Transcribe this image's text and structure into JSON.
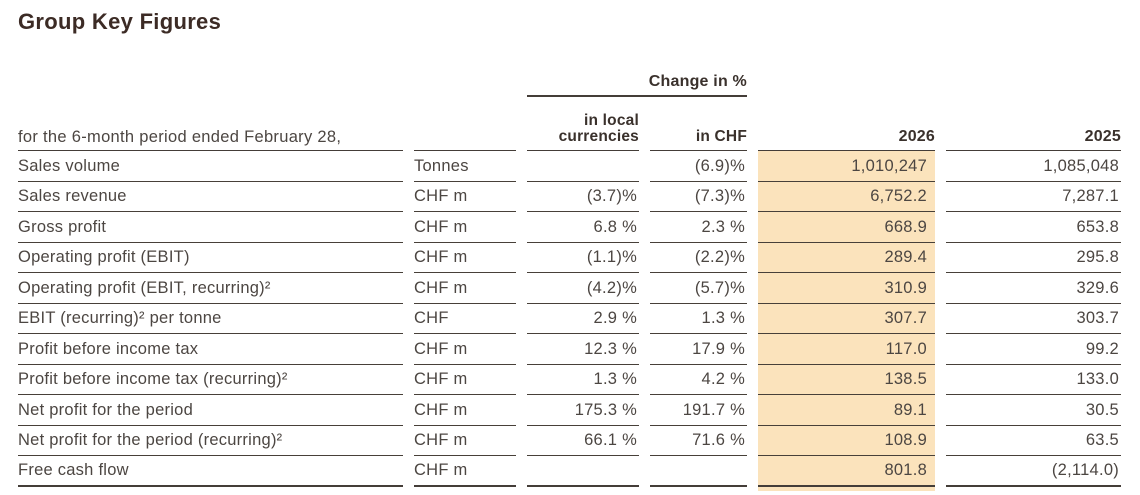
{
  "title": "Group Key Figures",
  "colors": {
    "highlight": "#fbe3bc",
    "rule_line": "#443d38",
    "body_text": "#4c4642",
    "heading_text": "#3c2b25"
  },
  "table": {
    "group_header": "Change in %",
    "period_label": "for the 6-month period ended February 28,",
    "columns": {
      "local": "in local currencies",
      "chf": "in CHF",
      "y2026": "2026",
      "y2025": "2025"
    },
    "rows": [
      {
        "label": "Sales volume",
        "unit": "Tonnes",
        "local": "",
        "chf": "(6.9)%",
        "y2026": "1,010,247",
        "y2025": "1,085,048"
      },
      {
        "label": "Sales revenue",
        "unit": "CHF m",
        "local": "(3.7)%",
        "chf": "(7.3)%",
        "y2026": "6,752.2",
        "y2025": "7,287.1"
      },
      {
        "label": "Gross profit",
        "unit": "CHF m",
        "local": "6.8 %",
        "chf": "2.3 %",
        "y2026": "668.9",
        "y2025": "653.8"
      },
      {
        "label": "Operating profit (EBIT)",
        "unit": "CHF m",
        "local": "(1.1)%",
        "chf": "(2.2)%",
        "y2026": "289.4",
        "y2025": "295.8"
      },
      {
        "label": "Operating profit (EBIT, recurring)²",
        "unit": "CHF m",
        "local": "(4.2)%",
        "chf": "(5.7)%",
        "y2026": "310.9",
        "y2025": "329.6"
      },
      {
        "label": "EBIT (recurring)² per tonne",
        "unit": "CHF",
        "local": "2.9 %",
        "chf": "1.3 %",
        "y2026": "307.7",
        "y2025": "303.7"
      },
      {
        "label": "Profit before income tax",
        "unit": "CHF m",
        "local": "12.3 %",
        "chf": "17.9 %",
        "y2026": "117.0",
        "y2025": "99.2"
      },
      {
        "label": "Profit before income tax (recurring)²",
        "unit": "CHF m",
        "local": "1.3 %",
        "chf": "4.2 %",
        "y2026": "138.5",
        "y2025": "133.0"
      },
      {
        "label": "Net profit for the period",
        "unit": "CHF m",
        "local": "175.3 %",
        "chf": "191.7 %",
        "y2026": "89.1",
        "y2025": "30.5"
      },
      {
        "label": "Net profit for the period (recurring)²",
        "unit": "CHF m",
        "local": "66.1 %",
        "chf": "71.6 %",
        "y2026": "108.9",
        "y2025": "63.5"
      },
      {
        "label": "Free cash flow",
        "unit": "CHF m",
        "local": "",
        "chf": "",
        "y2026": "801.8",
        "y2025": "(2,114.0)"
      }
    ]
  }
}
